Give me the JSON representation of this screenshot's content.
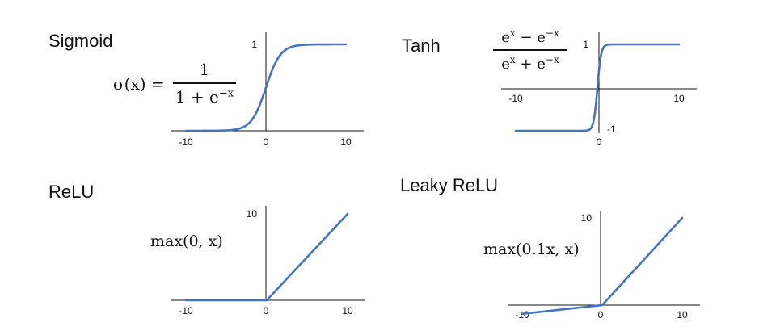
{
  "titles": {
    "sigmoid": "Sigmoid",
    "tanh": "Tanh",
    "relu": "ReLU",
    "leaky": "Leaky ReLU"
  },
  "formulas": {
    "sigmoid_lhs": "σ(x) =",
    "sigmoid_num": "1",
    "sigmoid_den": "1 + e",
    "sigmoid_den_sup": "−x",
    "tanh_num": "e",
    "tanh_num_sup1": "x",
    "tanh_num_mid": " − e",
    "tanh_num_sup2": "−x",
    "tanh_den": "e",
    "tanh_den_sup1": "x",
    "tanh_den_mid": " + e",
    "tanh_den_sup2": "−x",
    "relu": "max(0, x)",
    "leaky": "max(0.1x, x)"
  },
  "colors": {
    "curve": "#4472c4",
    "axis": "#111111"
  },
  "chart_data": [
    {
      "id": "sigmoid",
      "type": "line",
      "title": "Sigmoid",
      "function": "sigmoid",
      "xlim": [
        -10,
        10
      ],
      "ylim": [
        0,
        1
      ],
      "x_ticks": [
        "-10",
        "0",
        "10"
      ],
      "y_ticks": [
        "1"
      ],
      "series": [
        {
          "x": [
            -10,
            -6,
            -4,
            -3,
            -2,
            -1,
            0,
            1,
            2,
            3,
            4,
            6,
            10
          ],
          "y": [
            0.0,
            0.0025,
            0.018,
            0.047,
            0.119,
            0.269,
            0.5,
            0.731,
            0.881,
            0.953,
            0.982,
            0.9975,
            1.0
          ]
        }
      ]
    },
    {
      "id": "tanh",
      "type": "line",
      "title": "Tanh",
      "function": "tanh",
      "xlim": [
        -10,
        10
      ],
      "ylim": [
        -1,
        1
      ],
      "x_ticks": [
        "-10",
        "0",
        "10"
      ],
      "y_ticks": [
        "1",
        "-1"
      ],
      "series": [
        {
          "x": [
            -10,
            -1,
            -0.5,
            0,
            0.5,
            1,
            10
          ],
          "y": [
            -1,
            -0.76,
            -0.46,
            0,
            0.46,
            0.76,
            1
          ]
        }
      ]
    },
    {
      "id": "relu",
      "type": "line",
      "title": "ReLU",
      "function": "relu",
      "xlim": [
        -10,
        10
      ],
      "ylim": [
        0,
        10
      ],
      "x_ticks": [
        "-10",
        "0",
        "10"
      ],
      "y_ticks": [
        "10"
      ],
      "series": [
        {
          "x": [
            -10,
            0,
            10
          ],
          "y": [
            0,
            0,
            10
          ]
        }
      ]
    },
    {
      "id": "leaky",
      "type": "line",
      "title": "Leaky ReLU",
      "function": "leaky_relu",
      "xlim": [
        -10,
        10
      ],
      "ylim": [
        -1,
        10
      ],
      "x_ticks": [
        "-10",
        "0",
        "10"
      ],
      "y_ticks": [
        "10"
      ],
      "series": [
        {
          "x": [
            -10,
            0,
            10
          ],
          "y": [
            -1,
            0,
            10
          ]
        }
      ]
    }
  ]
}
